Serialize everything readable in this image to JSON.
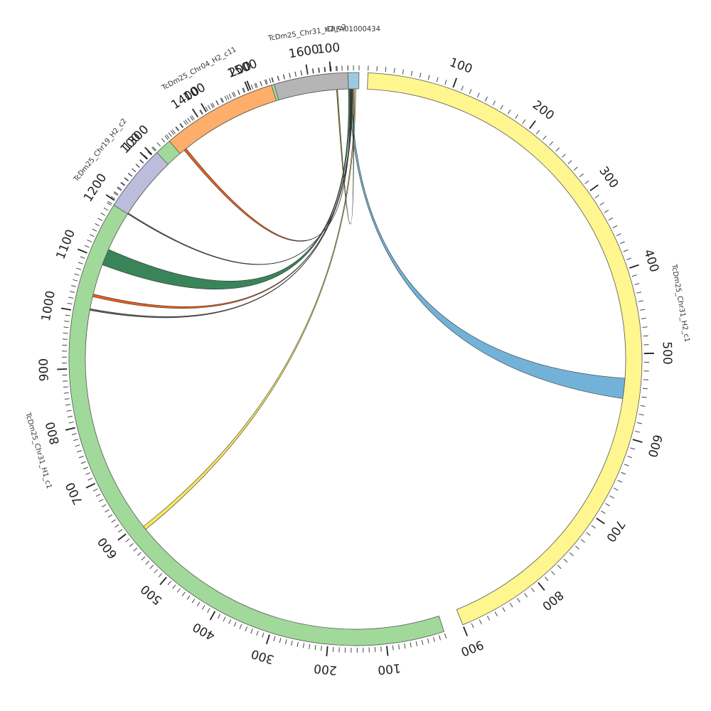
{
  "diagram": {
    "type": "circos",
    "sequences": [
      {
        "id": "s1",
        "name": "TcDm25_Chr31_H2_c1",
        "length": 900,
        "color": "#fff68f",
        "label_at": 450,
        "tick_step": 100
      },
      {
        "id": "s2",
        "name": "TcDm25_Chr31_H1_c1",
        "length": 1650,
        "color": "#a1d99b",
        "label_at": 780,
        "tick_step": 100
      },
      {
        "id": "s3",
        "name": "TcDm25_Chr19_H2_c2",
        "length": 120,
        "color": "#bcbddc",
        "label_at": 60,
        "tick_step": 100
      },
      {
        "id": "s4",
        "name": "TcDm25_Chr04_H2_c11",
        "length": 250,
        "color": "#fdae6b",
        "label_at": 130,
        "tick_step": 100
      },
      {
        "id": "s5",
        "name": "TcDm25_Chr31_H2_c2",
        "length": 130,
        "color": "#b5b5b5",
        "label_at": 70,
        "tick_step": 100
      },
      {
        "id": "s6",
        "name": "CRFA01000434",
        "length": 20,
        "color": "#9ecae1",
        "label_at": 10,
        "tick_step": 100
      }
    ],
    "links": [
      {
        "from": "s6",
        "from_range": [
          2,
          6
        ],
        "to": "s1",
        "to_range": [
          530,
          555
        ],
        "color": "#6baed6"
      },
      {
        "from": "s6",
        "from_range": [
          12,
          14
        ],
        "to": "s2",
        "to_range": [
          585,
          592
        ],
        "color": "#f7e552"
      },
      {
        "from": "s6",
        "from_range": [
          0,
          3
        ],
        "to": "s2",
        "to_range": [
          1090,
          1120
        ],
        "color": "#2e7d4f"
      },
      {
        "from": "s6",
        "from_range": [
          6,
          7
        ],
        "to": "s2",
        "to_range": [
          1030,
          1035
        ],
        "color": "#e6550d"
      },
      {
        "from": "s6",
        "from_range": [
          7,
          8
        ],
        "to": "s2",
        "to_range": [
          1005,
          1008
        ],
        "color": "#555555"
      },
      {
        "from": "s6",
        "from_range": [
          3,
          4
        ],
        "to": "s4",
        "to_range": [
          12,
          18
        ],
        "color": "#e6550d"
      },
      {
        "from": "s6",
        "from_range": [
          9,
          10
        ],
        "to": "s5",
        "to_range": [
          108,
          110
        ],
        "color": "#8c8c1a"
      },
      {
        "from": "s6",
        "from_range": [
          5,
          6
        ],
        "to": "s3",
        "to_range": [
          0,
          2
        ],
        "color": "#555555"
      }
    ]
  }
}
